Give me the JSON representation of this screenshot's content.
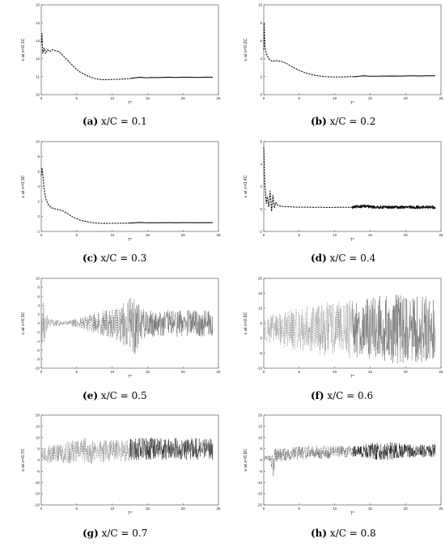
{
  "chart_data": [
    {
      "type": "line",
      "caption_tag": "(a)",
      "caption_text": "x/C = 0.1",
      "xlabel": "T*",
      "ylabel": "u at x=0.1C",
      "xlim": [
        0,
        25
      ],
      "ylim": [
        10,
        15
      ],
      "xticks": [
        0,
        5,
        10,
        15,
        20,
        25
      ],
      "xtick_labels": [
        "0",
        "5",
        "10",
        "15",
        "20",
        "25"
      ],
      "yticks": [
        10,
        11,
        12,
        13,
        14,
        15
      ],
      "ytick_labels": [
        "10",
        "11",
        "12",
        "13",
        "14",
        "15"
      ],
      "series": [
        {
          "style": "dashed",
          "color": "#111111",
          "x": [
            0,
            0.1,
            0.2,
            0.4,
            0.6,
            0.9,
            1.2,
            1.6,
            2,
            2.5,
            3,
            3.5,
            4,
            4.5,
            5,
            5.5,
            6,
            6.5,
            7,
            7.5,
            8,
            8.5,
            9,
            9.5,
            10,
            10.5,
            11,
            11.5,
            12,
            12.5
          ],
          "y": [
            12.9,
            13.4,
            12.3,
            12.6,
            12.3,
            12.5,
            12.4,
            12.5,
            12.45,
            12.4,
            12.2,
            12.0,
            11.8,
            11.6,
            11.4,
            11.25,
            11.15,
            11.05,
            10.97,
            10.9,
            10.86,
            10.84,
            10.83,
            10.84,
            10.85,
            10.85,
            10.86,
            10.87,
            10.88,
            10.9
          ]
        },
        {
          "style": "solid",
          "color": "#111111",
          "x": [
            12.5,
            13,
            13.5,
            14,
            14.5,
            15,
            15.5,
            16,
            17,
            18,
            19,
            20,
            21,
            22,
            23,
            24.2
          ],
          "y": [
            10.9,
            10.92,
            10.95,
            10.97,
            10.95,
            10.94,
            10.96,
            10.95,
            10.96,
            10.97,
            10.96,
            10.97,
            10.97,
            10.96,
            10.97,
            10.97
          ]
        }
      ]
    },
    {
      "type": "line",
      "caption_tag": "(b)",
      "caption_text": "x/C = 0.2",
      "xlabel": "T*",
      "ylabel": "u at x=0.2C",
      "xlim": [
        0,
        25
      ],
      "ylim": [
        0,
        10
      ],
      "xticks": [
        0,
        5,
        10,
        15,
        20,
        25
      ],
      "xtick_labels": [
        "0",
        "5",
        "10",
        "15",
        "20",
        "25"
      ],
      "yticks": [
        0,
        2,
        4,
        6,
        8,
        10
      ],
      "ytick_labels": [
        "0",
        "2",
        "4",
        "6",
        "8",
        "10"
      ],
      "series": [
        {
          "style": "dashed",
          "color": "#111111",
          "x": [
            0,
            0.05,
            0.15,
            0.3,
            0.5,
            0.8,
            1.2,
            1.6,
            2,
            2.5,
            3,
            3.5,
            4,
            4.5,
            5,
            5.5,
            6,
            6.5,
            7,
            7.5,
            8,
            8.5,
            9,
            9.5,
            10,
            10.5,
            11,
            11.5,
            12,
            12.5
          ],
          "y": [
            5,
            8,
            5.5,
            4.8,
            4.3,
            3.9,
            3.7,
            3.8,
            3.75,
            3.7,
            3.55,
            3.35,
            3.1,
            2.9,
            2.7,
            2.55,
            2.4,
            2.3,
            2.2,
            2.12,
            2.06,
            2.02,
            2.0,
            1.98,
            1.97,
            1.97,
            1.98,
            1.98,
            1.99,
            2.0
          ]
        },
        {
          "style": "solid",
          "color": "#111111",
          "x": [
            12.5,
            13,
            13.5,
            14,
            14.5,
            15,
            15.5,
            16,
            17,
            18,
            19,
            20,
            21,
            22,
            23,
            24.2
          ],
          "y": [
            2.0,
            2.02,
            2.05,
            2.1,
            2.08,
            2.05,
            2.06,
            2.05,
            2.07,
            2.08,
            2.07,
            2.08,
            2.1,
            2.08,
            2.1,
            2.1
          ]
        }
      ]
    },
    {
      "type": "line",
      "caption_tag": "(c)",
      "caption_text": "x/C = 0.3",
      "xlabel": "T*",
      "ylabel": "u at x=0.3C",
      "xlim": [
        0,
        25
      ],
      "ylim": [
        -2,
        10
      ],
      "xticks": [
        0,
        5,
        10,
        15,
        20,
        25
      ],
      "xtick_labels": [
        "0",
        "5",
        "10",
        "15",
        "20",
        "25"
      ],
      "yticks": [
        -2,
        0,
        2,
        4,
        6,
        8,
        10
      ],
      "ytick_labels": [
        "-2",
        "0",
        "2",
        "4",
        "6",
        "8",
        "10"
      ],
      "series": [
        {
          "style": "dashed",
          "color": "#111111",
          "x": [
            0,
            0.1,
            0.2,
            0.35,
            0.5,
            0.7,
            1,
            1.3,
            1.6,
            2,
            2.5,
            3,
            3.5,
            4,
            4.5,
            5,
            5.5,
            6,
            6.5,
            7,
            7.5,
            8,
            8.5,
            9,
            9.5,
            10,
            10.5,
            11,
            11.5,
            12,
            12.5
          ],
          "y": [
            5.5,
            6.5,
            5.8,
            4.2,
            3.0,
            2.2,
            1.6,
            1.25,
            1.1,
            1.0,
            0.9,
            0.75,
            0.5,
            0.2,
            -0.1,
            -0.3,
            -0.5,
            -0.6,
            -0.72,
            -0.8,
            -0.86,
            -0.9,
            -0.92,
            -0.93,
            -0.92,
            -0.92,
            -0.9,
            -0.91,
            -0.9,
            -0.9,
            -0.88
          ]
        },
        {
          "style": "solid",
          "color": "#111111",
          "x": [
            12.5,
            13,
            13.5,
            14,
            14.5,
            15,
            15.5,
            16,
            17,
            18,
            19,
            20,
            21,
            22,
            23,
            24.2
          ],
          "y": [
            -0.88,
            -0.86,
            -0.83,
            -0.8,
            -0.83,
            -0.85,
            -0.84,
            -0.85,
            -0.84,
            -0.83,
            -0.84,
            -0.83,
            -0.83,
            -0.84,
            -0.83,
            -0.83
          ]
        }
      ]
    },
    {
      "type": "line",
      "caption_tag": "(d)",
      "caption_text": "x/C = 0.4",
      "xlabel": "T*",
      "ylabel": "u at x=0.4C",
      "xlim": [
        0,
        25
      ],
      "ylim": [
        -2,
        6
      ],
      "xticks": [
        0,
        5,
        10,
        15,
        20,
        25
      ],
      "xtick_labels": [
        "0",
        "5",
        "10",
        "15",
        "20",
        "25"
      ],
      "yticks": [
        -2,
        0,
        2,
        4,
        6
      ],
      "ytick_labels": [
        "-2",
        "0",
        "2",
        "4",
        "6"
      ],
      "series": [
        {
          "style": "dashed",
          "color": "#111111",
          "x": [
            0,
            0.08,
            0.15,
            0.25,
            0.35,
            0.5,
            0.7,
            0.9,
            1.1,
            1.3,
            1.5,
            1.7,
            2,
            2.5,
            3,
            3.5,
            4,
            5,
            6,
            7,
            8,
            9,
            10,
            11,
            12,
            12.5
          ],
          "y": [
            5.5,
            3.5,
            2.2,
            1.4,
            0.5,
            1.1,
            0.2,
            1.6,
            -0.2,
            1.2,
            0.1,
            0.6,
            0.3,
            0.25,
            0.2,
            0.2,
            0.18,
            0.15,
            0.16,
            0.14,
            0.15,
            0.13,
            0.14,
            0.15,
            0.14,
            0.15
          ]
        },
        {
          "style": "solid",
          "color": "#111111",
          "noise": 0.12,
          "x": [
            12.5,
            13,
            14,
            15,
            16,
            17,
            18,
            19,
            20,
            21,
            22,
            23,
            24.2
          ],
          "y": [
            0.15,
            0.18,
            0.25,
            0.2,
            0.15,
            0.17,
            0.15,
            0.16,
            0.15,
            0.16,
            0.15,
            0.16,
            0.15
          ]
        }
      ]
    },
    {
      "type": "line",
      "caption_tag": "(e)",
      "caption_text": "x/C = 0.5",
      "xlabel": "T*",
      "ylabel": "u at x=0.5C",
      "xlim": [
        0,
        25
      ],
      "ylim": [
        -10,
        10
      ],
      "xticks": [
        0,
        5,
        10,
        15,
        20,
        25
      ],
      "xtick_labels": [
        "0",
        "5",
        "10",
        "15",
        "20",
        "25"
      ],
      "yticks": [
        -10,
        -8,
        -6,
        -4,
        -2,
        0,
        2,
        4,
        6,
        8,
        10
      ],
      "ytick_labels": [
        "-10",
        "-8",
        "-6",
        "-4",
        "-2",
        "0",
        "2",
        "4",
        "6",
        "8",
        "10"
      ],
      "series": [
        {
          "style": "dashed",
          "color": "#777777",
          "x": [
            0,
            0.3,
            0.6,
            1,
            2,
            3,
            4,
            5,
            6,
            7,
            8,
            9,
            10,
            11,
            12,
            12.5
          ],
          "y": [
            0,
            0,
            0,
            0,
            0,
            0,
            0,
            0,
            0,
            0,
            0,
            0,
            0,
            0,
            0,
            0
          ],
          "amp": [
            4,
            5,
            3,
            1,
            0.8,
            0.6,
            0.6,
            1,
            1.5,
            2,
            2.5,
            3,
            3.5,
            4.5,
            5.5,
            6
          ]
        },
        {
          "style": "solid",
          "color": "#777777",
          "x": [
            12.5,
            13,
            14,
            15,
            16,
            17,
            18,
            19,
            20,
            21,
            22,
            23,
            24.2
          ],
          "y": [
            0,
            0,
            0,
            0,
            0,
            0,
            0,
            0,
            0,
            0,
            0,
            0,
            0
          ],
          "amp": [
            6,
            8,
            4,
            3,
            3,
            3,
            3,
            3,
            3,
            3,
            3,
            3,
            3
          ]
        }
      ]
    },
    {
      "type": "line",
      "caption_tag": "(f)",
      "caption_text": "x/C = 0.6",
      "xlabel": "T*",
      "ylabel": "u at x=0.6C",
      "xlim": [
        0,
        25
      ],
      "ylim": [
        -10,
        20
      ],
      "xticks": [
        0,
        5,
        10,
        15,
        20,
        25
      ],
      "xtick_labels": [
        "0",
        "5",
        "10",
        "15",
        "20",
        "25"
      ],
      "yticks": [
        -10,
        -5,
        0,
        5,
        10,
        15,
        20
      ],
      "ytick_labels": [
        "-10",
        "-5",
        "0",
        "5",
        "10",
        "15",
        "20"
      ],
      "series": [
        {
          "style": "dashed",
          "color": "#999999",
          "x": [
            0,
            1,
            2,
            3,
            4,
            5,
            6,
            7,
            8,
            9,
            10,
            11,
            12,
            12.5
          ],
          "y": [
            3,
            3,
            3,
            3,
            3,
            3,
            3,
            3,
            3,
            3,
            3,
            3,
            3,
            3
          ],
          "amp": [
            4,
            5,
            5,
            6,
            7,
            7,
            8,
            8,
            9,
            9,
            9,
            9,
            10,
            10
          ]
        },
        {
          "style": "solid",
          "color": "#777777",
          "x": [
            12.5,
            14,
            16,
            18,
            20,
            22,
            24.2
          ],
          "y": [
            3,
            3,
            3,
            3,
            3,
            3,
            3
          ],
          "amp": [
            10,
            10,
            11,
            12,
            11,
            11,
            11
          ]
        }
      ]
    },
    {
      "type": "line",
      "caption_tag": "(g)",
      "caption_text": "x/C = 0.7",
      "xlabel": "T*",
      "ylabel": "u at x=0.7C",
      "xlim": [
        0,
        25
      ],
      "ylim": [
        -20,
        20
      ],
      "xticks": [
        0,
        5,
        10,
        15,
        20,
        25
      ],
      "xtick_labels": [
        "0",
        "5",
        "10",
        "15",
        "20",
        "25"
      ],
      "yticks": [
        -20,
        -15,
        -10,
        -5,
        0,
        5,
        10,
        15,
        20
      ],
      "ytick_labels": [
        "-20",
        "-15",
        "-10",
        "-5",
        "0",
        "5",
        "10",
        "15",
        "20"
      ],
      "series": [
        {
          "style": "dashed",
          "color": "#888888",
          "x": [
            0,
            1,
            2,
            3,
            4,
            5,
            6,
            7,
            8,
            9,
            10,
            11,
            12,
            12.5
          ],
          "y": [
            2,
            2.5,
            3,
            3.5,
            3.5,
            4,
            4,
            4,
            4,
            4,
            4,
            4,
            4.5,
            4.5
          ],
          "amp": [
            3,
            4,
            4,
            5,
            5,
            5,
            6,
            6,
            6,
            5,
            5,
            5,
            5,
            5
          ]
        },
        {
          "style": "solid",
          "color": "#333333",
          "x": [
            12.5,
            14,
            16,
            18,
            20,
            22,
            24.2
          ],
          "y": [
            4.5,
            5,
            5,
            5,
            5,
            5,
            5
          ],
          "amp": [
            5,
            5,
            5,
            5,
            5,
            5,
            5
          ]
        }
      ]
    },
    {
      "type": "line",
      "caption_tag": "(h)",
      "caption_text": "x/C = 0.8",
      "xlabel": "T*",
      "ylabel": "u at x=0.8C",
      "xlim": [
        0,
        25
      ],
      "ylim": [
        -20,
        20
      ],
      "xticks": [
        0,
        5,
        10,
        15,
        20,
        25
      ],
      "xtick_labels": [
        "0",
        "5",
        "10",
        "15",
        "20",
        "25"
      ],
      "yticks": [
        -20,
        -15,
        -10,
        -5,
        0,
        5,
        10,
        15,
        20
      ],
      "ytick_labels": [
        "-20",
        "-15",
        "-10",
        "-5",
        "0",
        "5",
        "10",
        "15",
        "20"
      ],
      "series": [
        {
          "style": "dashed",
          "color": "#555555",
          "x": [
            0,
            0.5,
            1,
            1.3,
            1.6,
            2,
            3,
            4,
            5,
            6,
            7,
            8,
            9,
            10,
            11,
            12,
            12.5
          ],
          "y": [
            1,
            1,
            1,
            -4,
            2,
            2,
            2.5,
            3,
            3,
            3.5,
            3.5,
            3.5,
            3.5,
            4,
            4,
            4,
            4
          ],
          "amp": [
            1,
            1,
            2,
            6,
            3,
            3,
            3,
            3,
            3,
            3,
            3,
            3,
            3,
            3,
            3,
            3,
            3
          ]
        },
        {
          "style": "solid",
          "color": "#222222",
          "x": [
            12.5,
            14,
            16,
            18,
            20,
            22,
            24.2
          ],
          "y": [
            4,
            4,
            4,
            4,
            4,
            4,
            4
          ],
          "amp": [
            3,
            3,
            4,
            4,
            3,
            3,
            3
          ]
        }
      ]
    }
  ]
}
